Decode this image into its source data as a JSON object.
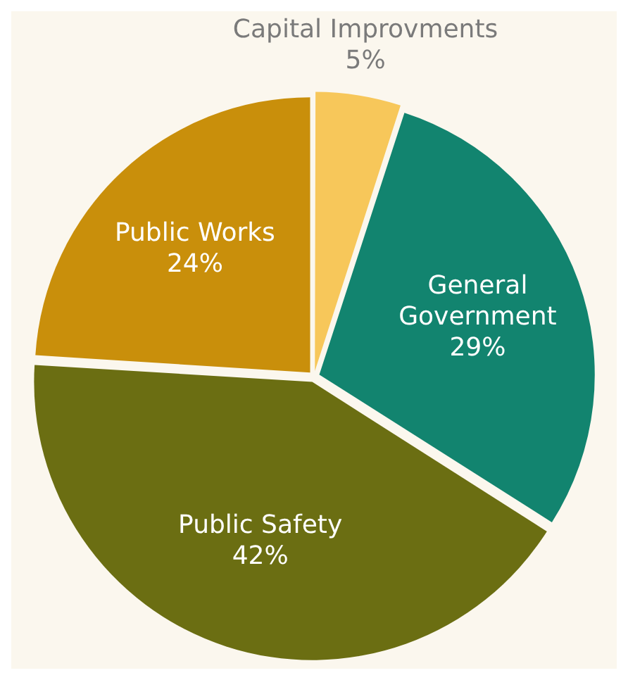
{
  "chart_data": {
    "type": "pie",
    "categories": [
      "Capital Improvments",
      "General Government",
      "Public Safety",
      "Public Works"
    ],
    "values": [
      5,
      29,
      42,
      24
    ],
    "colors": [
      "#f7c75a",
      "#12846f",
      "#6b6e12",
      "#c98f0b"
    ],
    "value_labels": [
      "5%",
      "29%",
      "42%",
      "24%"
    ],
    "legend": false
  }
}
